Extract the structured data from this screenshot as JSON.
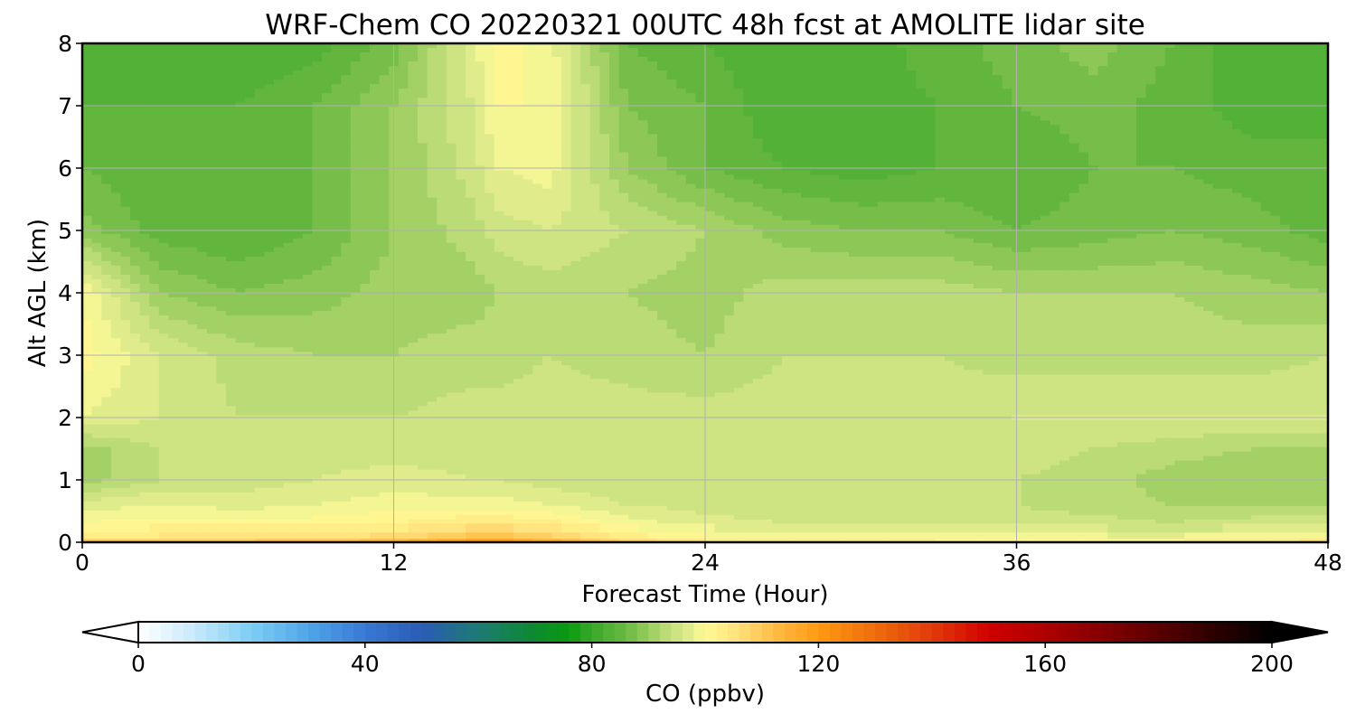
{
  "chart_data": {
    "type": "heatmap",
    "title": "WRF-Chem CO  20220321 00UTC 48h fcst at AMOLITE lidar site",
    "xlabel": "Forecast Time (Hour)",
    "ylabel": "Alt AGL (km)",
    "xlim": [
      0,
      48
    ],
    "ylim": [
      0,
      8
    ],
    "xticks": [
      0,
      12,
      24,
      36,
      48
    ],
    "yticks": [
      0,
      1,
      2,
      3,
      4,
      5,
      6,
      7,
      8
    ],
    "grid": true,
    "x_hours": [
      0,
      3,
      6,
      9,
      12,
      15,
      16,
      18,
      21,
      24,
      27,
      30,
      33,
      36,
      39,
      42,
      45,
      48
    ],
    "y_km": [
      0,
      0.05,
      0.3,
      0.6,
      1,
      1.5,
      2,
      3,
      4,
      5,
      6,
      7,
      8
    ],
    "values_ppbv": [
      [
        115,
        116,
        117,
        118,
        120,
        128,
        130,
        122,
        112,
        108,
        107,
        106,
        105,
        104,
        104,
        106,
        108,
        110
      ],
      [
        104,
        105,
        105,
        106,
        108,
        112,
        113,
        110,
        104,
        101,
        100,
        100,
        100,
        99,
        99,
        99,
        100,
        101
      ],
      [
        100,
        101,
        101,
        101,
        102,
        104,
        104,
        103,
        99,
        97,
        96,
        96,
        96,
        95,
        95,
        94,
        95,
        96
      ],
      [
        97,
        98,
        97,
        98,
        99,
        99,
        99,
        98,
        96,
        95,
        94,
        94,
        94,
        94,
        93,
        92,
        92,
        92
      ],
      [
        91,
        94,
        95,
        96,
        97,
        96,
        96,
        95,
        94,
        94,
        94,
        95,
        94,
        94,
        93,
        91,
        90,
        90
      ],
      [
        91,
        94,
        95,
        95,
        95,
        95,
        95,
        95,
        94,
        94,
        94,
        95,
        95,
        95,
        94,
        93,
        92,
        92
      ],
      [
        98,
        96,
        94,
        94,
        94,
        95,
        95,
        95,
        95,
        95,
        95,
        95,
        95,
        96,
        96,
        96,
        96,
        96
      ],
      [
        101,
        96,
        93,
        92,
        92,
        93,
        93,
        94,
        93,
        92,
        94,
        94,
        94,
        93,
        93,
        93,
        93,
        94
      ],
      [
        100,
        90,
        88,
        89,
        91,
        91,
        92,
        93,
        92,
        91,
        93,
        93,
        93,
        92,
        92,
        92,
        91,
        90
      ],
      [
        89,
        85,
        84,
        86,
        90,
        93,
        95,
        96,
        94,
        92,
        89,
        88,
        88,
        86,
        87,
        88,
        87,
        85
      ],
      [
        86,
        84,
        84,
        86,
        90,
        95,
        98,
        99,
        90,
        86,
        84,
        83,
        84,
        84,
        86,
        86,
        85,
        84
      ],
      [
        84,
        84,
        84,
        86,
        90,
        96,
        100,
        100,
        88,
        86,
        82,
        83,
        84,
        86,
        87,
        85,
        83,
        84
      ],
      [
        84,
        83,
        82,
        83,
        87,
        97,
        101,
        99,
        86,
        84,
        82,
        83,
        85,
        87,
        89,
        86,
        82,
        82
      ]
    ],
    "colorbar": {
      "label": "CO  (ppbv)",
      "min": 0,
      "max": 200,
      "ticks": [
        0,
        40,
        80,
        120,
        160,
        200
      ],
      "extend": "both",
      "colormap": [
        [
          0,
          "#ffffff"
        ],
        [
          10,
          "#c8eafa"
        ],
        [
          20,
          "#7ccdf4"
        ],
        [
          30,
          "#4fa6e8"
        ],
        [
          40,
          "#3a78d4"
        ],
        [
          50,
          "#2a5cb4"
        ],
        [
          60,
          "#1d7a74"
        ],
        [
          70,
          "#0c8a2e"
        ],
        [
          76,
          "#0a9a10"
        ],
        [
          80,
          "#3aa82a"
        ],
        [
          86,
          "#6ab942"
        ],
        [
          90,
          "#98cc5c"
        ],
        [
          94,
          "#c5e07e"
        ],
        [
          98,
          "#e9f08f"
        ],
        [
          100,
          "#fffa96"
        ],
        [
          106,
          "#ffdf7a"
        ],
        [
          112,
          "#ffbd48"
        ],
        [
          120,
          "#ff9a12"
        ],
        [
          130,
          "#ee6c0c"
        ],
        [
          140,
          "#e23a0a"
        ],
        [
          150,
          "#d10000"
        ],
        [
          160,
          "#ad0000"
        ],
        [
          170,
          "#850000"
        ],
        [
          180,
          "#5a0000"
        ],
        [
          190,
          "#2b0000"
        ],
        [
          200,
          "#000000"
        ]
      ]
    }
  }
}
